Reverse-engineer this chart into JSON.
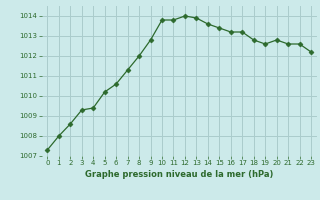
{
  "x": [
    0,
    1,
    2,
    3,
    4,
    5,
    6,
    7,
    8,
    9,
    10,
    11,
    12,
    13,
    14,
    15,
    16,
    17,
    18,
    19,
    20,
    21,
    22,
    23
  ],
  "y": [
    1007.3,
    1008.0,
    1008.6,
    1009.3,
    1009.4,
    1010.2,
    1010.6,
    1011.3,
    1012.0,
    1012.8,
    1013.8,
    1013.8,
    1014.0,
    1013.9,
    1013.6,
    1013.4,
    1013.2,
    1013.2,
    1012.8,
    1012.6,
    1012.8,
    1012.6,
    1012.6,
    1012.2
  ],
  "line_color": "#2d6a2d",
  "marker": "D",
  "marker_size": 2.5,
  "bg_color": "#cceaea",
  "grid_color": "#aacccc",
  "title": "Graphe pression niveau de la mer (hPa)",
  "ylim": [
    1007,
    1014.5
  ],
  "xlim": [
    -0.5,
    23.5
  ],
  "yticks": [
    1007,
    1008,
    1009,
    1010,
    1011,
    1012,
    1013,
    1014
  ],
  "xticks": [
    0,
    1,
    2,
    3,
    4,
    5,
    6,
    7,
    8,
    9,
    10,
    11,
    12,
    13,
    14,
    15,
    16,
    17,
    18,
    19,
    20,
    21,
    22,
    23
  ]
}
